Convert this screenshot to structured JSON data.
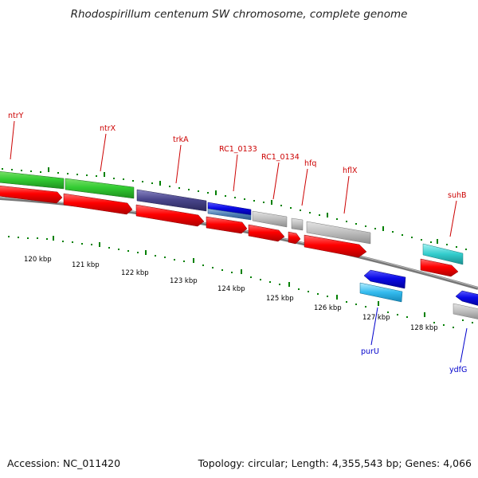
{
  "title": "Rhodospirillum centenum SW chromosome, complete genome",
  "footer": {
    "accession": "Accession: NC_011420",
    "summary": "Topology: circular; Length: 4,355,543 bp; Genes: 4,066"
  },
  "colors": {
    "cds_red": "#ff0000",
    "tick_green": "#008000",
    "backbone_gray": "#808080",
    "gene_label_red": "#cc0000",
    "gene_label_blue": "#0000cc"
  },
  "kbp_labels": [
    "120 kbp",
    "121 kbp",
    "122 kbp",
    "123 kbp",
    "124 kbp",
    "125 kbp",
    "126 kbp",
    "127 kbp",
    "128 kbp"
  ],
  "gene_labels": [
    "ntrY",
    "ntrX",
    "trkA",
    "RC1_0133",
    "RC1_0134",
    "hfq",
    "hflX",
    "suhB",
    "purU",
    "ydfG"
  ]
}
